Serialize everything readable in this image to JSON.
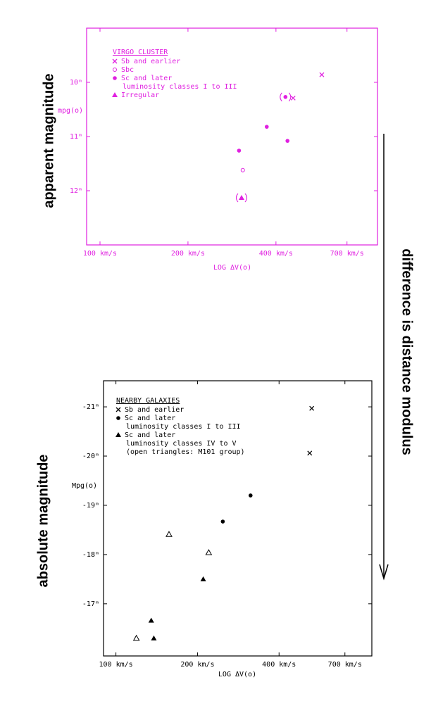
{
  "chart_data": [
    {
      "type": "scatter",
      "color": "#e020e0",
      "log_x": true,
      "side_label": "apparent magnitude",
      "ylabel": "mpg(o)",
      "xlabel": "LOG ΔV(o)",
      "legend_title": "VIRGO CLUSTER",
      "xlim": [
        90,
        890
      ],
      "ylim": [
        13,
        9
      ],
      "xticks": [
        {
          "value": 100,
          "label": "100 km/s"
        },
        {
          "value": 200,
          "label": "200 km/s"
        },
        {
          "value": 400,
          "label": "400 km/s"
        },
        {
          "value": 700,
          "label": "700 km/s"
        }
      ],
      "yticks": [
        {
          "value": 10,
          "label": "10ᵐ"
        },
        {
          "value": 11,
          "label": "11ᵐ"
        },
        {
          "value": 12,
          "label": "12ᵐ"
        }
      ],
      "series": [
        {
          "legend": [
            "Sb and earlier"
          ],
          "marker": "cross",
          "x": [
            574,
            458
          ],
          "values": [
            9.86,
            10.29
          ]
        },
        {
          "legend": [
            "Sbc"
          ],
          "marker": "circle-open",
          "x": [
            308
          ],
          "values": [
            11.62
          ]
        },
        {
          "legend": [
            "Sc and later",
            "luminosity classes I to III"
          ],
          "marker": "circle",
          "x": [
            372,
            438,
            299,
            431
          ],
          "values": [
            10.82,
            11.08,
            11.26,
            10.27
          ],
          "parenthesized": [
            3
          ]
        },
        {
          "legend": [
            "Irregular"
          ],
          "marker": "triangle",
          "x": [
            305
          ],
          "values": [
            12.13
          ],
          "parenthesized": [
            0
          ]
        }
      ]
    },
    {
      "type": "scatter",
      "color": "#000000",
      "log_x": true,
      "side_label": "absolute magnitude",
      "ylabel": "Mpg(o)",
      "xlabel": "LOG ΔV(o)",
      "legend_title": "NEARBY GALAXIES",
      "xlim": [
        90,
        880
      ],
      "ylim": [
        -15.94,
        -21.53
      ],
      "xticks": [
        {
          "value": 100,
          "label": "100 km/s"
        },
        {
          "value": 200,
          "label": "200 km/s"
        },
        {
          "value": 400,
          "label": "400 km/s"
        },
        {
          "value": 700,
          "label": "700 km/s"
        }
      ],
      "yticks": [
        {
          "value": -21,
          "label": "-21ᵐ"
        },
        {
          "value": -20,
          "label": "-20ᵐ"
        },
        {
          "value": -19,
          "label": "-19ᵐ"
        },
        {
          "value": -18,
          "label": "-18ᵐ"
        },
        {
          "value": -17,
          "label": "-17ᵐ"
        }
      ],
      "series": [
        {
          "legend": [
            "Sb and earlier"
          ],
          "marker": "cross",
          "x": [
            528,
            519
          ],
          "values": [
            -20.97,
            -20.06
          ]
        },
        {
          "legend": [
            "Sc and later",
            "luminosity classes I to III"
          ],
          "marker": "circle",
          "x": [
            314,
            248
          ],
          "values": [
            -19.2,
            -18.67
          ]
        },
        {
          "legend": [
            "Sc and later",
            "luminosity classes IV to V",
            "(open triangles: M101 group)"
          ],
          "marker": "triangle",
          "x": [
            210,
            135,
            138
          ],
          "values": [
            -17.5,
            -16.66,
            -16.3
          ]
        },
        {
          "marker": "triangle-open",
          "x": [
            220,
            157,
            119
          ],
          "values": [
            -18.04,
            -18.41,
            -16.3
          ]
        }
      ]
    }
  ],
  "arrow_label": "difference is distance modulus"
}
